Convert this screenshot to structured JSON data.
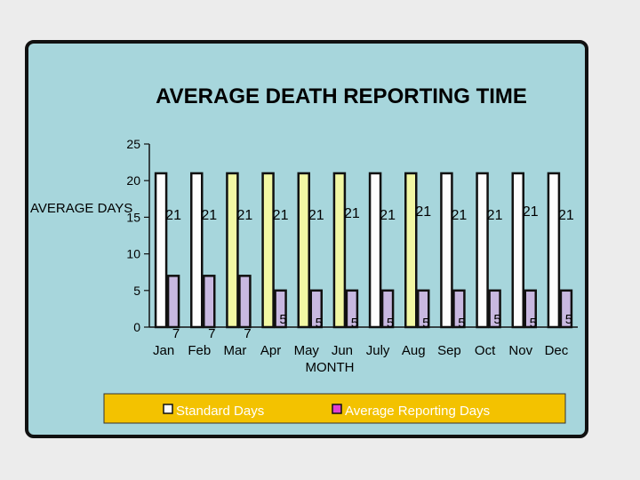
{
  "chart_data": {
    "type": "bar",
    "title": "AVERAGE DEATH REPORTING TIME",
    "xlabel": "MONTH",
    "ylabel": "AVERAGE DAYS",
    "categories": [
      "Jan",
      "Feb",
      "Mar",
      "Apr",
      "May",
      "Jun",
      "July",
      "Aug",
      "Sep",
      "Oct",
      "Nov",
      "Dec"
    ],
    "series": [
      {
        "name": "Standard Days",
        "values": [
          21,
          21,
          21,
          21,
          21,
          21,
          21,
          21,
          21,
          21,
          21,
          21
        ],
        "color": "#fdfdfd"
      },
      {
        "name": "Average Reporting Days",
        "values": [
          7,
          7,
          7,
          5,
          5,
          5,
          5,
          5,
          5,
          5,
          5,
          5
        ],
        "color": "#c8b8e0"
      }
    ],
    "ylim": [
      0,
      25
    ],
    "yticks": [
      0,
      5,
      10,
      15,
      20,
      25
    ],
    "legend_position": "bottom",
    "colors": {
      "panel": "#a7d6dc",
      "legend_bg": "#f3c200",
      "standard_alt": "#f2f8a4",
      "bar_stroke": "#111111"
    }
  }
}
